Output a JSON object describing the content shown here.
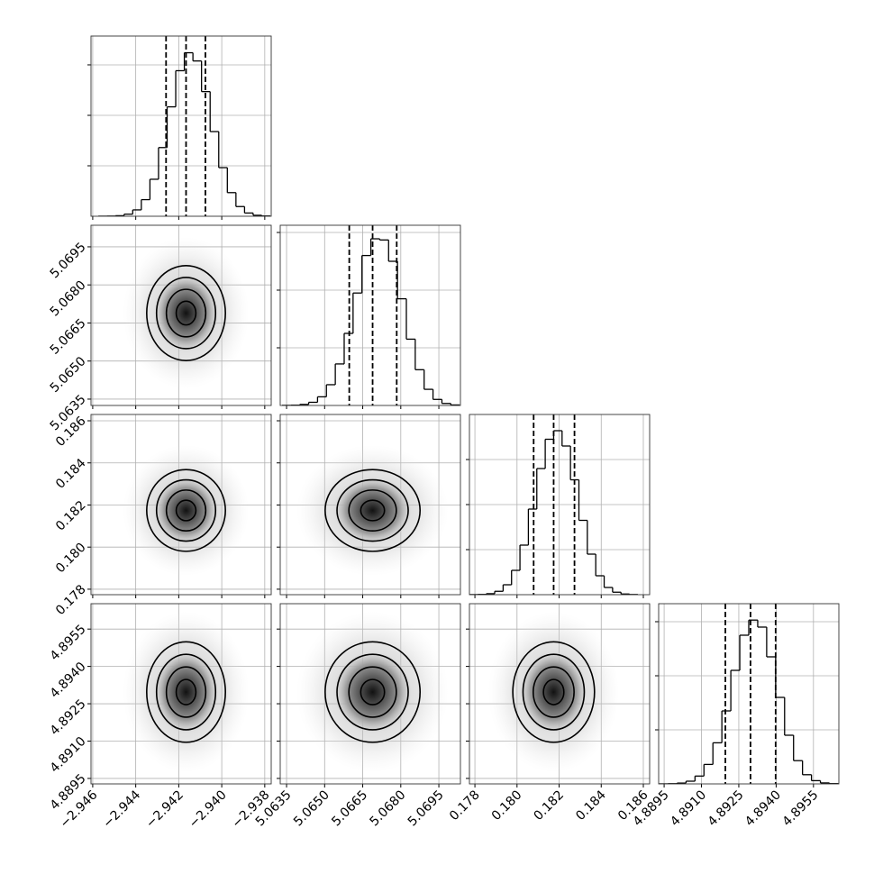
{
  "chart_data": {
    "type": "corner",
    "grid": true,
    "contour_levels": [
      0.5,
      1,
      1.5,
      2
    ],
    "parameters": [
      {
        "xlim": [
          -2.94608,
          -2.9377
        ],
        "xticks": [
          {
            "value": -2.946,
            "label": "−2.946"
          },
          {
            "value": -2.944,
            "label": "−2.944"
          },
          {
            "value": -2.942,
            "label": "−2.942"
          },
          {
            "value": -2.94,
            "label": "−2.940"
          },
          {
            "value": -2.938,
            "label": "−2.938"
          }
        ],
        "bins": [
          -2.94574,
          -2.94534,
          -2.94494,
          -2.94454,
          -2.94414,
          -2.94374,
          -2.94334,
          -2.94294,
          -2.94254,
          -2.94214,
          -2.94174,
          -2.94134,
          -2.94094,
          -2.94054,
          -2.94014,
          -2.93974,
          -2.93934,
          -2.93894,
          -2.93854,
          -2.93814,
          -2.93774
        ],
        "counts": [
          1,
          3,
          11,
          41,
          126,
          329,
          733,
          1361,
          2168,
          2884,
          3240,
          3077,
          2470,
          1678,
          963,
          468,
          192,
          64,
          19,
          5
        ],
        "ylim": [
          0,
          3571
        ],
        "yticks": [
          1000,
          2000,
          3000
        ],
        "quantiles": [
          -2.94259,
          -2.94166,
          -2.94076
        ]
      },
      {
        "xlim": [
          5.06325,
          5.07035
        ],
        "xticks": [
          5.0635,
          {
            "value": 5.065,
            "label": "5.0650"
          },
          5.0665,
          {
            "value": 5.068,
            "label": "5.0680"
          },
          5.0695
        ],
        "bins": [
          5.06332,
          5.06367,
          5.06402,
          5.06437,
          5.06472,
          5.06507,
          5.06542,
          5.06577,
          5.06612,
          5.06647,
          5.06682,
          5.06717,
          5.06752,
          5.06787,
          5.06822,
          5.06857,
          5.06892,
          5.06927,
          5.06962,
          5.06997,
          5.07032
        ],
        "counts": [
          2,
          5,
          18,
          55,
          150,
          360,
          720,
          1250,
          1950,
          2600,
          2890,
          2870,
          2500,
          1850,
          1150,
          620,
          280,
          105,
          35,
          9
        ],
        "ylim": [
          0,
          3125
        ],
        "yticks": [
          1000,
          2000,
          3000
        ],
        "quantiles": [
          5.06597,
          5.06689,
          5.06784
        ]
      },
      {
        "xlim": [
          0.17774,
          0.1863
        ],
        "xticks": [
          0.178,
          {
            "value": 0.18,
            "label": "0.180"
          },
          0.182,
          0.184,
          0.186
        ],
        "bins": [
          0.17774,
          0.17814,
          0.17854,
          0.17894,
          0.17934,
          0.17974,
          0.18014,
          0.18054,
          0.18094,
          0.18134,
          0.18174,
          0.18214,
          0.18254,
          0.18294,
          0.18334,
          0.18374,
          0.18414,
          0.18454,
          0.18494,
          0.18534,
          0.18574
        ],
        "counts": [
          2,
          6,
          22,
          75,
          220,
          540,
          1100,
          1900,
          2800,
          3450,
          3640,
          3300,
          2550,
          1650,
          900,
          420,
          160,
          55,
          15,
          4
        ],
        "ylim": [
          0,
          4000
        ],
        "yticks": [
          1000,
          2000,
          3000
        ],
        "quantiles": [
          0.18079,
          0.18174,
          0.18273
        ]
      },
      {
        "xlim": [
          4.88928,
          4.89652
        ],
        "xticks": [
          4.8895,
          {
            "value": 4.891,
            "label": "4.8910"
          },
          4.8925,
          {
            "value": 4.894,
            "label": "4.8940"
          },
          4.8955
        ],
        "bins": [
          4.8893,
          4.88966,
          4.89002,
          4.89038,
          4.89074,
          4.8911,
          4.89146,
          4.89182,
          4.89218,
          4.89254,
          4.8929,
          4.89326,
          4.89362,
          4.89398,
          4.89434,
          4.8947,
          4.89506,
          4.89542,
          4.89578,
          4.89614,
          4.8965
        ],
        "counts": [
          1,
          4,
          15,
          50,
          145,
          360,
          760,
          1350,
          2100,
          2750,
          3030,
          2900,
          2350,
          1600,
          900,
          430,
          170,
          60,
          18,
          5
        ],
        "ylim": [
          0,
          3333
        ],
        "yticks": [
          1000,
          2000,
          3000
        ],
        "quantiles": [
          4.89196,
          4.89297,
          4.89398
        ]
      }
    ]
  }
}
